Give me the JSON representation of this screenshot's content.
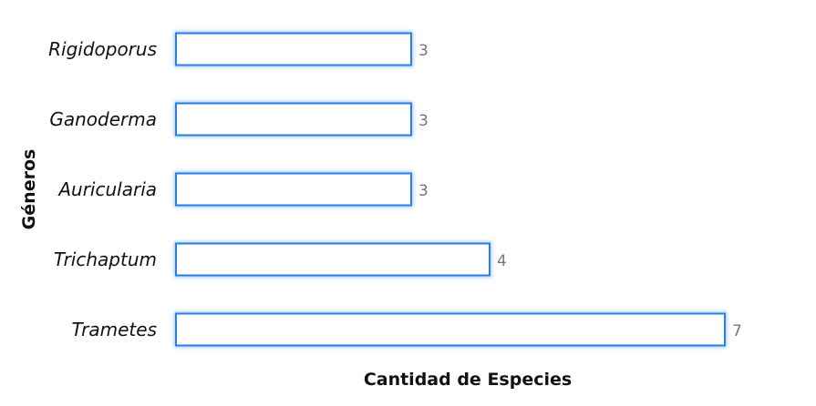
{
  "chart_data": {
    "type": "bar",
    "orientation": "horizontal",
    "categories": [
      "Rigidoporus",
      "Ganoderma",
      "Auricularia",
      "Trichaptum",
      "Trametes"
    ],
    "values": [
      3,
      3,
      3,
      4,
      7
    ],
    "xlabel": "Cantidad de Especies",
    "ylabel": "Géneros",
    "xlim": [
      0,
      7
    ],
    "grid": false,
    "data_labels": true,
    "bar_fill": "#ffffff",
    "bar_stroke": "#2a7de1"
  }
}
